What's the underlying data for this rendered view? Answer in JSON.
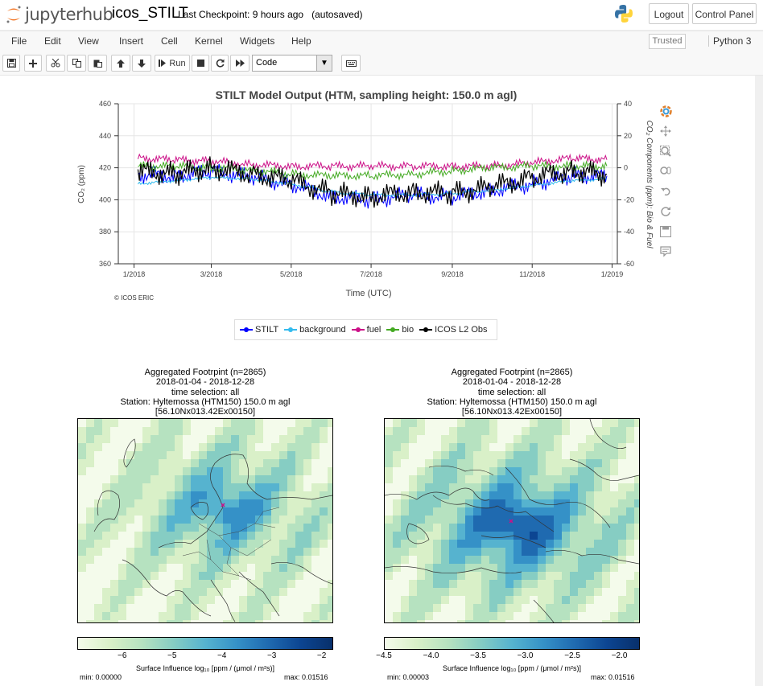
{
  "header": {
    "brand": "jupyterhub",
    "notebook_title": "icos_STILT",
    "checkpoint": "Last Checkpoint: 9 hours ago",
    "autosaved": "(autosaved)",
    "logout_label": "Logout",
    "control_panel_label": "Control Panel"
  },
  "menu": {
    "items": [
      "File",
      "Edit",
      "View",
      "Insert",
      "Cell",
      "Kernel",
      "Widgets",
      "Help"
    ],
    "trusted": "Trusted",
    "kernel_name": "Python 3"
  },
  "toolbar": {
    "run_label": "Run",
    "cell_type": "Code",
    "icons": [
      "save-icon",
      "plus-icon",
      "cut-icon",
      "copy-icon",
      "paste-icon",
      "arrow-up-icon",
      "arrow-down-icon",
      "step-forward-icon",
      "stop-icon",
      "restart-icon",
      "fast-forward-icon",
      "keyboard-icon"
    ]
  },
  "colors": {
    "stilt": "#0000ff",
    "background": "#33bbee",
    "fuel": "#cc1188",
    "bio": "#44aa22",
    "obs": "#000000"
  },
  "chart_data": {
    "type": "line",
    "title": "STILT Model Output (HTM, sampling height: 150.0 m agl)",
    "xlabel": "Time (UTC)",
    "ylabel": "CO₂ (ppm)",
    "y2label": "CO₂ Components (ppm): Bio & Fuel",
    "x_ticks": [
      "1/2018",
      "3/2018",
      "5/2018",
      "7/2018",
      "9/2018",
      "11/2018",
      "1/2019"
    ],
    "y_ticks": [
      360,
      380,
      400,
      420,
      440,
      460
    ],
    "y2_ticks": [
      -60,
      -40,
      -20,
      0,
      20,
      40
    ],
    "ylim": [
      360,
      460
    ],
    "y2lim": [
      -60,
      40
    ],
    "xlim": [
      "2017-12-20",
      "2019-01-05"
    ],
    "grid": true,
    "legend_position": "bottom",
    "credit": "© ICOS ERIC",
    "series": [
      {
        "name": "STILT",
        "axis": "left",
        "x": [
          "2018-01-04",
          "2018-02-01",
          "2018-03-01",
          "2018-04-01",
          "2018-05-01",
          "2018-06-01",
          "2018-07-01",
          "2018-08-01",
          "2018-09-01",
          "2018-10-01",
          "2018-11-01",
          "2018-12-01",
          "2018-12-28"
        ],
        "y": [
          416,
          415,
          418,
          414,
          410,
          402,
          400,
          403,
          402,
          406,
          410,
          415,
          415
        ]
      },
      {
        "name": "background",
        "axis": "left",
        "x": [
          "2018-01-04",
          "2018-02-01",
          "2018-03-01",
          "2018-04-01",
          "2018-05-01",
          "2018-06-01",
          "2018-07-01",
          "2018-08-01",
          "2018-09-01",
          "2018-10-01",
          "2018-11-01",
          "2018-12-01",
          "2018-12-28"
        ],
        "y": [
          410,
          412,
          414,
          413,
          410,
          405,
          403,
          403,
          404,
          406,
          409,
          412,
          413
        ]
      },
      {
        "name": "fuel",
        "axis": "right",
        "x": [
          "2018-01-04",
          "2018-02-01",
          "2018-03-01",
          "2018-04-01",
          "2018-05-01",
          "2018-06-01",
          "2018-07-01",
          "2018-08-01",
          "2018-09-01",
          "2018-10-01",
          "2018-11-01",
          "2018-12-01",
          "2018-12-28"
        ],
        "y": [
          6,
          5,
          4,
          2,
          1,
          1,
          1,
          1,
          1,
          1,
          3,
          6,
          5
        ]
      },
      {
        "name": "bio",
        "axis": "right",
        "x": [
          "2018-01-04",
          "2018-02-01",
          "2018-03-01",
          "2018-04-01",
          "2018-05-01",
          "2018-06-01",
          "2018-07-01",
          "2018-08-01",
          "2018-09-01",
          "2018-10-01",
          "2018-11-01",
          "2018-12-01",
          "2018-12-28"
        ],
        "y": [
          1,
          1,
          0,
          -1,
          -4,
          -5,
          -5,
          -4,
          -2,
          0,
          1,
          1,
          1
        ]
      },
      {
        "name": "ICOS L2 Obs",
        "axis": "left",
        "x": [
          "2018-01-04",
          "2018-02-01",
          "2018-03-01",
          "2018-04-01",
          "2018-05-01",
          "2018-06-01",
          "2018-07-01",
          "2018-08-01",
          "2018-09-01",
          "2018-10-01",
          "2018-11-01",
          "2018-12-01",
          "2018-12-28"
        ],
        "y": [
          418,
          416,
          420,
          416,
          412,
          404,
          402,
          405,
          404,
          408,
          414,
          418,
          416
        ]
      }
    ]
  },
  "footprints": [
    {
      "title": "Aggregated Footrpint (n=2865)",
      "period": "2018-01-04 - 2018-12-28",
      "time_selection": "time selection: all",
      "station": "Station: Hyltemossa (HTM150) 150.0 m agl",
      "code": "[56.10Nx013.42Ex00150]",
      "colorbar_ticks": [
        "−6",
        "−5",
        "−4",
        "−3",
        "−2"
      ],
      "colorbar_range": [
        -6.9,
        -1.8
      ],
      "colorbar_label": "Surface Influence  log₁₀ [ppm / (μmol / m²s)]",
      "min": "min: 0.00000",
      "max": "max: 0.01516"
    },
    {
      "title": "Aggregated Footrpint (n=2865)",
      "period": "2018-01-04 - 2018-12-28",
      "time_selection": "time selection: all",
      "station": "Station: Hyltemossa (HTM150) 150.0 m agl",
      "code": "[56.10Nx013.42Ex00150]",
      "colorbar_ticks": [
        "−4.5",
        "−4.0",
        "−3.5",
        "−3.0",
        "−2.5",
        "−2.0"
      ],
      "colorbar_range": [
        -4.5,
        -1.8
      ],
      "colorbar_label": "Surface Influence  log₁₀ [ppm / (μmol / m²s)]",
      "min": "min: 0.00003",
      "max": "max: 0.01516"
    }
  ]
}
